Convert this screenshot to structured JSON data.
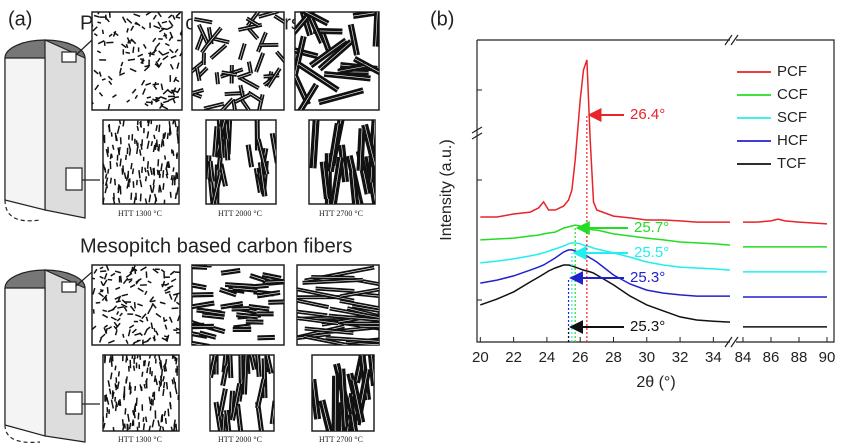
{
  "panel_a": {
    "label": "(a)",
    "pan_title": "PAN based carbon fibers",
    "mesopitch_title": "Mesopitch based carbon fibers",
    "pan_labels": [
      "HTT 1300 °C",
      "HTT 2000 °C",
      "HTT 2700 °C"
    ],
    "mesopitch_labels": [
      "HTT 1300 °C",
      "HTT 2000 °C",
      "HTT 2700 °C"
    ]
  },
  "chart_data": {
    "type": "line",
    "panel_label": "(b)",
    "x_label": "2θ (°)",
    "y_label": "Intensity (a.u.)",
    "xlim": [
      19.8,
      90.5
    ],
    "xbreak": [
      35,
      83.5
    ],
    "ylim": [
      0,
      100
    ],
    "xticks": [
      20,
      22,
      24,
      26,
      28,
      30,
      32,
      34,
      84,
      86,
      88,
      90
    ],
    "legend": "top-right",
    "x": [
      20,
      21,
      22,
      23,
      23.5,
      23.8,
      24.1,
      24.5,
      25,
      25.3,
      25.5,
      25.7,
      26,
      26.2,
      26.4,
      26.6,
      26.8,
      27,
      28,
      29,
      30,
      31,
      32,
      33,
      34,
      35,
      84,
      85,
      86,
      86.5,
      87,
      88,
      89,
      90
    ],
    "series": [
      {
        "name": "PCF",
        "color": "#e8232a",
        "values": [
          41.4,
          41.4,
          42.4,
          43.0,
          44.4,
          46.4,
          43.7,
          43.7,
          45.0,
          47.0,
          50.3,
          60.3,
          80.1,
          90.1,
          93.4,
          66.9,
          46.4,
          43.7,
          41.7,
          41.1,
          40.4,
          40.4,
          40.1,
          39.7,
          39.7,
          39.7,
          39.7,
          39.7,
          40.1,
          40.7,
          40.1,
          39.7,
          39.4,
          39.1
        ]
      },
      {
        "name": "CCF",
        "color": "#22dd22",
        "values": [
          33.8,
          34.1,
          34.4,
          35.1,
          35.4,
          35.8,
          36.1,
          36.4,
          37.7,
          38.1,
          38.4,
          38.7,
          38.4,
          38.1,
          37.7,
          37.4,
          37.1,
          37.1,
          35.8,
          35.1,
          34.4,
          33.8,
          33.1,
          32.8,
          32.5,
          32.1,
          31.5,
          31.5,
          31.5,
          31.5,
          31.5,
          31.5,
          31.5,
          31.5
        ]
      },
      {
        "name": "SCF",
        "color": "#22eeee",
        "values": [
          26.2,
          26.8,
          27.5,
          28.5,
          29.1,
          29.5,
          30.1,
          30.8,
          31.8,
          32.5,
          32.8,
          32.8,
          32.5,
          32.1,
          31.8,
          31.5,
          31.1,
          30.8,
          29.5,
          28.1,
          26.5,
          25.5,
          24.8,
          24.5,
          24.2,
          23.8,
          23.2,
          23.2,
          23.2,
          23.2,
          23.2,
          23.2,
          23.2,
          23.2
        ]
      },
      {
        "name": "HCF",
        "color": "#2222cc",
        "values": [
          19.5,
          20.5,
          21.9,
          23.8,
          24.8,
          25.5,
          26.5,
          27.8,
          29.8,
          30.5,
          30.5,
          30.1,
          29.5,
          29.1,
          28.5,
          27.8,
          27.2,
          26.5,
          22.2,
          19.2,
          17.2,
          16.2,
          15.6,
          15.2,
          15.2,
          15.2,
          14.9,
          14.9,
          14.9,
          14.9,
          14.9,
          14.9,
          14.9,
          14.9
        ]
      },
      {
        "name": "TCF",
        "color": "#111111",
        "values": [
          12.3,
          14.2,
          16.6,
          19.9,
          21.5,
          22.5,
          23.5,
          24.5,
          25.5,
          25.5,
          25.2,
          24.8,
          24.2,
          23.8,
          23.5,
          23.2,
          22.8,
          22.2,
          18.9,
          15.2,
          12.3,
          10.3,
          8.3,
          7.3,
          6.9,
          6.6,
          5.0,
          5.0,
          5.0,
          5.0,
          5.0,
          5.0,
          5.0,
          5.0
        ]
      }
    ],
    "annotations": [
      {
        "value": 26.4,
        "label": "26.4°",
        "color": "#e8232a"
      },
      {
        "value": 25.7,
        "label": "25.7°",
        "color": "#22dd22"
      },
      {
        "value": 25.5,
        "label": "25.5°",
        "color": "#22eeee"
      },
      {
        "value": 25.3,
        "label": "25.3°",
        "color": "#2222cc"
      },
      {
        "value": 25.3,
        "label": "25.3°",
        "color": "#111111"
      }
    ]
  }
}
